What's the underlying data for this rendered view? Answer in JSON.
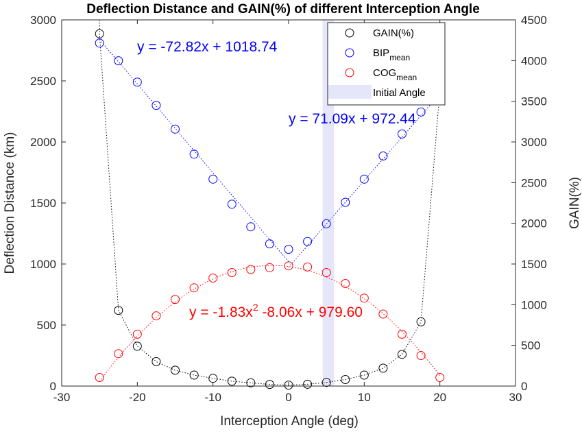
{
  "chart_data": {
    "type": "scatter",
    "title": "Deflection Distance and GAIN(%) of different Interception Angle",
    "xlabel": "Interception Angle (deg)",
    "ylabel_left": "Deflection Distance (km)",
    "ylabel_right": "GAIN(%)",
    "xlim": [
      -30,
      30
    ],
    "ylim_left": [
      0,
      3000
    ],
    "ylim_right": [
      0,
      4500
    ],
    "x_ticks": [
      "-30",
      "-20",
      "-10",
      "0",
      "10",
      "20",
      "30"
    ],
    "y_left_ticks": [
      "0",
      "500",
      "1000",
      "1500",
      "2000",
      "2500",
      "3000"
    ],
    "y_right_ticks": [
      "0",
      "500",
      "1000",
      "1500",
      "2000",
      "2500",
      "3000",
      "3500",
      "4000",
      "4500"
    ],
    "initial_angle_band": [
      4.5,
      6.0
    ],
    "series": [
      {
        "name": "GAIN(%)",
        "axis": "right",
        "color": "#000000",
        "x": [
          -25,
          -22.5,
          -20,
          -17.5,
          -15,
          -12.5,
          -10,
          -7.5,
          -5,
          -2.5,
          0,
          2.5,
          5,
          7.5,
          10,
          12.5,
          15,
          17.5,
          20
        ],
        "y": [
          4330,
          930,
          490,
          300,
          195,
          135,
          95,
          60,
          40,
          20,
          12,
          22,
          45,
          80,
          135,
          220,
          390,
          790,
          3640
        ]
      },
      {
        "name": "BIP",
        "subscript": "mean",
        "axis": "left",
        "color": "#0000ff",
        "x": [
          -25,
          -22.5,
          -20,
          -17.5,
          -15,
          -12.5,
          -10,
          -7.5,
          -5,
          -2.5,
          0,
          2.5,
          5,
          7.5,
          10,
          12.5,
          15,
          17.5,
          20
        ],
        "y": [
          2810,
          2665,
          2490,
          2300,
          2105,
          1900,
          1695,
          1490,
          1305,
          1165,
          1120,
          1185,
          1330,
          1505,
          1695,
          1885,
          2065,
          2245,
          2420
        ]
      },
      {
        "name": "COG",
        "subscript": "mean",
        "axis": "left",
        "color": "#ff0000",
        "x": [
          -25,
          -22.5,
          -20,
          -17.5,
          -15,
          -12.5,
          -10,
          -7.5,
          -5,
          -2.5,
          0,
          2.5,
          5,
          7.5,
          10,
          12.5,
          15,
          17.5,
          20
        ],
        "y": [
          70,
          265,
          425,
          575,
          710,
          805,
          885,
          930,
          955,
          970,
          985,
          975,
          930,
          840,
          720,
          590,
          425,
          250,
          70
        ]
      }
    ],
    "fit_lines": [
      {
        "series": "BIP",
        "x_range": [
          -25,
          0
        ],
        "slope": -72.82,
        "intercept": 1018.74
      },
      {
        "series": "BIP",
        "x_range": [
          0,
          20
        ],
        "slope": 71.09,
        "intercept": 972.44
      },
      {
        "series": "COG",
        "x_range": [
          -25,
          20
        ],
        "a": -1.83,
        "b": -8.06,
        "c": 979.6
      }
    ],
    "annotations": [
      {
        "id": "bip-left",
        "text": "y = -72.82x + 1018.74",
        "color": "#0000ff"
      },
      {
        "id": "bip-right",
        "text": "y = 71.09x + 972.44",
        "color": "#0000ff"
      },
      {
        "id": "cog-fit",
        "text_prefix": "y = -1.83x",
        "superscript": "2",
        "text_suffix": " -8.06x + 979.60",
        "color": "#ff0000"
      }
    ],
    "legend": {
      "location": "top-right",
      "entries": [
        {
          "label": "GAIN(%)",
          "color": "#000000",
          "marker": "circle"
        },
        {
          "label": "BIP",
          "subscript": "mean",
          "color": "#0000ff",
          "marker": "circle"
        },
        {
          "label": "COG",
          "subscript": "mean",
          "color": "#ff0000",
          "marker": "circle"
        },
        {
          "label": "Initial Angle",
          "color": "#e6e6fa",
          "marker": "patch"
        }
      ]
    },
    "grid": false
  }
}
